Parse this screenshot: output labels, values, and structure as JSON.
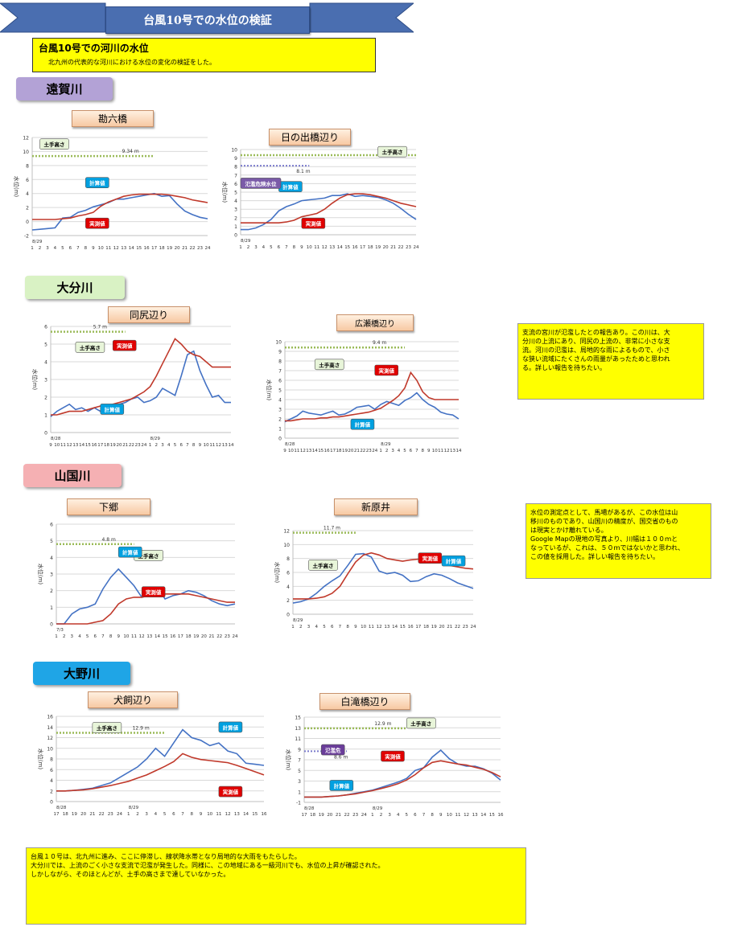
{
  "page_title": "台風10号での水位の検証",
  "intro": {
    "title": "台風10号での河川の水位",
    "subtitle": "北九州の代表的な河川における水位の変化の検証をした。"
  },
  "rivers": {
    "onga": {
      "label": "遠賀川",
      "color": "#b3a2d6"
    },
    "oita": {
      "label": "大分川",
      "color": "#d9f2c4"
    },
    "yamakuni": {
      "label": "山国川",
      "color": "#f5b0b3"
    },
    "ono": {
      "label": "大野川",
      "color": "#1fa5e6"
    }
  },
  "places": {
    "kan_rokubashi": "勘六橋",
    "hinode": "日の出橋辺り",
    "doujiri": "同尻辺り",
    "hirose": "広瀬橋辺り",
    "shimogo": "下郷",
    "shinbarai": "新原井",
    "inukai": "犬飼辺り",
    "shirataki": "白滝橋辺り"
  },
  "labels": {
    "levee": "土手高さ",
    "calc": "計算値",
    "measured": "実測値",
    "danger": "氾濫危険水位",
    "flood_level": "氾濫危",
    "y_axis": "水位(m)"
  },
  "colors": {
    "calc_line": "#4472c4",
    "measured_line": "#c0392b",
    "levee_line": "#9bbb59",
    "calc_box": "#00a0e0",
    "measured_box": "#e00000",
    "danger_box": "#7a5aa8",
    "flood_box": "#6a3d9a"
  },
  "notes": {
    "oita": [
      "支流の宮川が氾濫したとの報告あり。この川は、大",
      "分川の上流にあり、同尻の上流の、非常に小さな支",
      "流。河川の氾濫は、局地的な雨によるもので、小さ",
      "な狭い流域にたくさんの雨量があったためと思われ",
      "る。詳しい報告を待ちたい。"
    ],
    "yamakuni": [
      "水位の測定点として、馬場があるが、この水位は山",
      "移川のものであり、山国川の精度が、国交省のもの",
      "は現実とかけ離れている。",
      "Google Mapの現地の写真より、川幅は１００ｍと",
      "なっているが、これは、５０ｍではないかと思われ、",
      "この値を採用した。詳しい報告を待ちたい。"
    ],
    "summary": [
      "台風１０号は、北九州に進み、ここに停滞し、線状降水帯となり局地的な大雨をもたらした。",
      "大分川では、上流のごく小さな支流で氾濫が発生した。同様に、この地域にある一級河川でも、水位の上昇が確認された。",
      "しかしながら、そのほとんどが、土手の高さまで達していなかった。"
    ]
  },
  "chart_data": [
    {
      "id": "kan",
      "type": "line",
      "title": "勘六橋",
      "ylabel": "水位(m)",
      "ylim": [
        -2,
        12
      ],
      "yticks": [
        "-2",
        "0",
        "2",
        "4",
        "6",
        "8",
        "10",
        "12"
      ],
      "date_label": "8/29",
      "x": [
        "1",
        "2",
        "3",
        "4",
        "5",
        "6",
        "7",
        "8",
        "9",
        "10",
        "11",
        "12",
        "13",
        "14",
        "15",
        "16",
        "17",
        "18",
        "19",
        "20",
        "21",
        "22",
        "23",
        "24"
      ],
      "levee": {
        "value": 9.34,
        "label": "9.34 m",
        "x_range": [
          1,
          17
        ]
      },
      "series": [
        {
          "name": "計算値",
          "values": [
            -1.2,
            -1.1,
            -1.0,
            -0.9,
            0.5,
            0.6,
            1.3,
            1.6,
            2.1,
            2.4,
            2.7,
            3.2,
            3.2,
            3.4,
            3.6,
            3.8,
            4.0,
            3.6,
            3.7,
            2.5,
            1.5,
            1.0,
            0.6,
            0.4
          ]
        },
        {
          "name": "実測値",
          "values": [
            0.3,
            0.3,
            0.3,
            0.3,
            0.4,
            0.5,
            0.8,
            1.0,
            1.3,
            2.2,
            2.8,
            3.2,
            3.6,
            3.8,
            3.9,
            3.9,
            3.9,
            3.9,
            3.8,
            3.6,
            3.4,
            3.1,
            2.9,
            2.7
          ]
        }
      ]
    },
    {
      "id": "hinode",
      "type": "line",
      "title": "日の出橋辺り",
      "ylabel": "水位(m)",
      "ylim": [
        0,
        10
      ],
      "yticks": [
        "0",
        "1",
        "2",
        "3",
        "4",
        "5",
        "6",
        "7",
        "8",
        "9",
        "10"
      ],
      "date_label": "8/29",
      "x": [
        "1",
        "2",
        "3",
        "4",
        "5",
        "6",
        "7",
        "8",
        "9",
        "10",
        "11",
        "12",
        "13",
        "14",
        "15",
        "16",
        "17",
        "18",
        "19",
        "20",
        "21",
        "22",
        "23",
        "24"
      ],
      "levee": {
        "value": 9.34,
        "label": "",
        "x_range": [
          1,
          24
        ]
      },
      "danger": {
        "value": 8.1,
        "label": "8.1 m",
        "x_range": [
          1,
          10
        ]
      },
      "series": [
        {
          "name": "計算値",
          "values": [
            0.6,
            0.6,
            0.8,
            1.2,
            1.8,
            2.8,
            3.3,
            3.6,
            4.0,
            4.1,
            4.2,
            4.3,
            4.6,
            4.6,
            4.8,
            4.5,
            4.6,
            4.5,
            4.4,
            4.1,
            3.7,
            3.1,
            2.4,
            1.8
          ]
        },
        {
          "name": "実測値",
          "values": [
            1.4,
            1.4,
            1.4,
            1.4,
            1.4,
            1.4,
            1.5,
            1.7,
            2.1,
            2.3,
            2.5,
            3.0,
            3.7,
            4.3,
            4.7,
            4.8,
            4.8,
            4.7,
            4.5,
            4.3,
            4.0,
            3.7,
            3.5,
            3.3
          ]
        }
      ]
    },
    {
      "id": "doujiri",
      "type": "line",
      "title": "同尻辺り",
      "ylabel": "水位(m)",
      "ylim": [
        0,
        6
      ],
      "yticks": [
        "0",
        "1",
        "2",
        "3",
        "4",
        "5",
        "6"
      ],
      "date_label": "8/28",
      "date_label2": "8/29",
      "x": [
        "9",
        "10",
        "11",
        "12",
        "13",
        "14",
        "15",
        "16",
        "17",
        "18",
        "19",
        "20",
        "21",
        "22",
        "23",
        "24",
        "1",
        "2",
        "3",
        "4",
        "5",
        "6",
        "7",
        "8",
        "9",
        "10",
        "11",
        "12",
        "13",
        "14"
      ],
      "levee": {
        "value": 5.7,
        "label": "5.7 m",
        "x_range": [
          1,
          13
        ]
      },
      "series": [
        {
          "name": "計算値",
          "values": [
            0.9,
            1.2,
            1.4,
            1.6,
            1.3,
            1.4,
            1.2,
            1.4,
            1.2,
            1.3,
            1.5,
            1.6,
            1.7,
            1.9,
            2.0,
            1.7,
            1.8,
            2.0,
            2.5,
            2.3,
            2.1,
            3.2,
            4.4,
            4.6,
            3.5,
            2.7,
            2.0,
            2.1,
            1.7,
            1.7
          ]
        },
        {
          "name": "実測値",
          "values": [
            1.0,
            1.0,
            1.1,
            1.2,
            1.2,
            1.2,
            1.3,
            1.4,
            1.5,
            1.5,
            1.6,
            1.7,
            1.8,
            1.9,
            2.1,
            2.3,
            2.6,
            3.2,
            3.9,
            4.6,
            5.3,
            5.0,
            4.6,
            4.4,
            4.3,
            4.0,
            3.7,
            3.7,
            3.7,
            3.7
          ]
        }
      ]
    },
    {
      "id": "hirose",
      "type": "line",
      "title": "広瀬橋辺り",
      "ylabel": "水位(m)",
      "ylim": [
        0,
        10
      ],
      "yticks": [
        "0",
        "1",
        "2",
        "3",
        "4",
        "5",
        "6",
        "7",
        "8",
        "9",
        "10"
      ],
      "date_label": "8/28",
      "date_label2": "8/29",
      "x": [
        "9",
        "10",
        "11",
        "12",
        "13",
        "14",
        "15",
        "16",
        "17",
        "18",
        "19",
        "20",
        "21",
        "22",
        "23",
        "24",
        "1",
        "2",
        "3",
        "4",
        "5",
        "6",
        "7",
        "8",
        "9",
        "10",
        "11",
        "12",
        "13",
        "14"
      ],
      "levee": {
        "value": 9.4,
        "label": "9.4 m",
        "x_range": [
          1,
          21
        ]
      },
      "series": [
        {
          "name": "計算値",
          "values": [
            1.7,
            2.0,
            2.3,
            2.8,
            2.6,
            2.5,
            2.4,
            2.6,
            2.8,
            2.4,
            2.5,
            2.8,
            3.2,
            3.3,
            3.4,
            3.0,
            3.5,
            3.8,
            3.6,
            3.4,
            3.9,
            4.2,
            4.7,
            4.0,
            3.5,
            3.2,
            2.7,
            2.5,
            2.4,
            2.0
          ]
        },
        {
          "name": "実測値",
          "values": [
            1.8,
            1.8,
            1.9,
            2.0,
            2.0,
            2.0,
            2.1,
            2.1,
            2.2,
            2.2,
            2.3,
            2.4,
            2.5,
            2.6,
            2.7,
            2.9,
            3.1,
            3.5,
            3.9,
            4.4,
            5.2,
            6.8,
            6.0,
            4.8,
            4.2,
            4.0,
            4.0,
            4.0,
            4.0,
            4.0
          ]
        }
      ]
    },
    {
      "id": "shimogo",
      "type": "line",
      "title": "下郷",
      "ylabel": "水位(m)",
      "ylim": [
        0,
        6
      ],
      "yticks": [
        "0",
        "1",
        "2",
        "3",
        "4",
        "5",
        "6"
      ],
      "date_label": "7/3",
      "x": [
        "1",
        "2",
        "3",
        "4",
        "5",
        "6",
        "7",
        "8",
        "9",
        "10",
        "11",
        "12",
        "13",
        "14",
        "15",
        "16",
        "17",
        "18",
        "19",
        "20",
        "21",
        "22",
        "23",
        "24"
      ],
      "levee": {
        "value": 4.8,
        "label": "4.8 m",
        "x_range": [
          1,
          11
        ]
      },
      "series": [
        {
          "name": "計算値",
          "values": [
            0,
            0,
            0.6,
            0.9,
            1.0,
            1.2,
            2.1,
            2.8,
            3.3,
            2.8,
            2.3,
            1.6,
            2.1,
            2.2,
            1.5,
            1.7,
            1.8,
            2.0,
            1.9,
            1.7,
            1.4,
            1.2,
            1.1,
            1.2
          ]
        },
        {
          "name": "実測値",
          "values": [
            0,
            0,
            0,
            0,
            0,
            0.1,
            0.2,
            0.6,
            1.2,
            1.5,
            1.6,
            1.6,
            1.7,
            1.8,
            1.8,
            1.8,
            1.8,
            1.8,
            1.7,
            1.6,
            1.5,
            1.4,
            1.3,
            1.3
          ]
        }
      ]
    },
    {
      "id": "shinbarai",
      "type": "line",
      "title": "新原井",
      "ylabel": "水位(m)",
      "ylim": [
        0,
        12
      ],
      "yticks": [
        "0",
        "2",
        "4",
        "6",
        "8",
        "10",
        "12"
      ],
      "date_label": "8/29",
      "x": [
        "1",
        "2",
        "3",
        "4",
        "5",
        "6",
        "7",
        "8",
        "9",
        "10",
        "11",
        "12",
        "13",
        "14",
        "15",
        "16",
        "17",
        "18",
        "19",
        "20",
        "21",
        "22",
        "23",
        "24"
      ],
      "levee": {
        "value": 11.7,
        "label": "11.7 m",
        "x_range": [
          1,
          9
        ]
      },
      "series": [
        {
          "name": "計算値",
          "values": [
            1.6,
            1.8,
            2.2,
            3.0,
            4.0,
            4.8,
            5.5,
            7.0,
            8.6,
            8.7,
            8.2,
            6.2,
            5.8,
            6.0,
            5.6,
            4.7,
            4.8,
            5.4,
            5.8,
            5.6,
            5.1,
            4.5,
            4.1,
            3.7
          ]
        },
        {
          "name": "実測値",
          "values": [
            2.2,
            2.2,
            2.2,
            2.3,
            2.5,
            3.0,
            4.0,
            5.8,
            7.5,
            8.5,
            8.8,
            8.5,
            8.0,
            7.8,
            7.6,
            7.8,
            7.9,
            8.0,
            7.5,
            7.4,
            7.0,
            6.8,
            6.6,
            6.5
          ]
        }
      ]
    },
    {
      "id": "inukai",
      "type": "line",
      "title": "犬飼辺り",
      "ylabel": "水位(m)",
      "ylim": [
        0,
        16
      ],
      "yticks": [
        "0",
        "2",
        "4",
        "6",
        "8",
        "10",
        "12",
        "14",
        "16"
      ],
      "date_label": "8/28",
      "date_label2": "8/29",
      "x": [
        "17",
        "18",
        "19",
        "20",
        "21",
        "22",
        "23",
        "24",
        "1",
        "2",
        "3",
        "4",
        "5",
        "6",
        "7",
        "8",
        "9",
        "10",
        "11",
        "12",
        "13",
        "14",
        "15",
        "16"
      ],
      "levee": {
        "value": 12.9,
        "label": "12.9 m",
        "x_range": [
          1,
          13
        ]
      },
      "series": [
        {
          "name": "計算値",
          "values": [
            2.0,
            2.0,
            2.1,
            2.3,
            2.5,
            3.0,
            3.5,
            4.5,
            5.5,
            6.5,
            8.0,
            10.0,
            8.5,
            11.0,
            13.5,
            12.0,
            11.5,
            10.5,
            11.0,
            9.5,
            9.0,
            7.2,
            7.0,
            6.8
          ]
        },
        {
          "name": "実測値",
          "values": [
            2.0,
            2.0,
            2.1,
            2.2,
            2.4,
            2.7,
            3.0,
            3.4,
            3.8,
            4.4,
            5.0,
            5.8,
            6.6,
            7.5,
            9.0,
            8.3,
            7.9,
            7.7,
            7.5,
            7.3,
            6.8,
            6.2,
            5.6,
            5.0
          ]
        }
      ]
    },
    {
      "id": "shirataki",
      "type": "line",
      "title": "白滝橋辺り",
      "ylabel": "水位(m)",
      "ylim": [
        -1,
        15
      ],
      "yticks": [
        "-1",
        "1",
        "3",
        "5",
        "7",
        "9",
        "11",
        "13",
        "15"
      ],
      "date_label": "8/28",
      "date_label2": "8/29",
      "x": [
        "17",
        "18",
        "19",
        "20",
        "21",
        "22",
        "23",
        "24",
        "1",
        "2",
        "3",
        "4",
        "5",
        "6",
        "7",
        "8",
        "9",
        "10",
        "11",
        "12",
        "13",
        "14",
        "15",
        "16"
      ],
      "levee": {
        "value": 12.9,
        "label": "12.9 m",
        "x_range": [
          1,
          13
        ]
      },
      "danger": {
        "value": 8.6,
        "label": "8.6 m",
        "x_range": [
          1,
          6
        ]
      },
      "series": [
        {
          "name": "計算値",
          "values": [
            0,
            0,
            0,
            0.1,
            0.2,
            0.4,
            0.7,
            1.0,
            1.3,
            1.8,
            2.3,
            2.8,
            3.5,
            5.0,
            5.5,
            7.5,
            8.8,
            7.2,
            6.2,
            5.8,
            5.8,
            5.3,
            4.5,
            3.2
          ]
        },
        {
          "name": "実測値",
          "values": [
            0,
            0,
            0,
            0.1,
            0.2,
            0.4,
            0.6,
            0.9,
            1.2,
            1.6,
            2.0,
            2.5,
            3.2,
            4.2,
            5.5,
            6.5,
            6.8,
            6.5,
            6.2,
            6.0,
            5.6,
            5.2,
            4.6,
            3.8
          ]
        }
      ]
    }
  ]
}
